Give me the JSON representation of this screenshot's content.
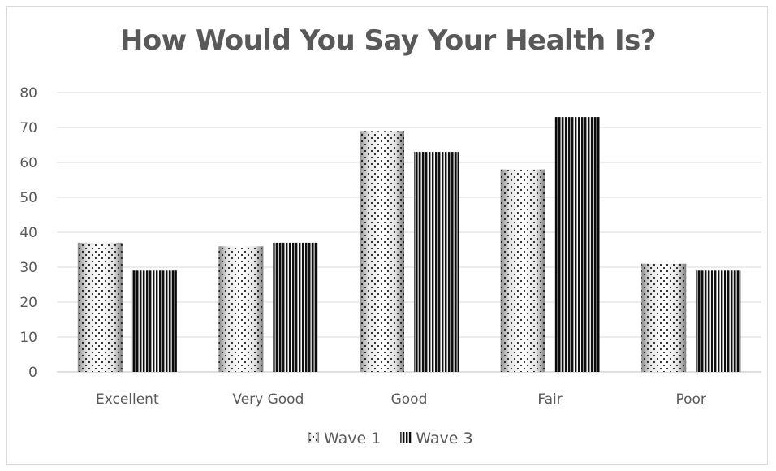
{
  "chart_data": {
    "type": "bar",
    "title": "How Would You Say Your Health Is?",
    "xlabel": "",
    "ylabel": "",
    "categories": [
      "Excellent",
      "Very Good",
      "Good",
      "Fair",
      "Poor"
    ],
    "series": [
      {
        "name": "Wave 1",
        "values": [
          37,
          36,
          69,
          58,
          31
        ],
        "pattern": "dots"
      },
      {
        "name": "Wave 3",
        "values": [
          29,
          37,
          63,
          73,
          29
        ],
        "pattern": "vertical-stripes"
      }
    ],
    "ylim": [
      0,
      80
    ],
    "yticks": [
      0,
      10,
      20,
      30,
      40,
      50,
      60,
      70,
      80
    ],
    "grid": true,
    "legend_position": "bottom"
  }
}
